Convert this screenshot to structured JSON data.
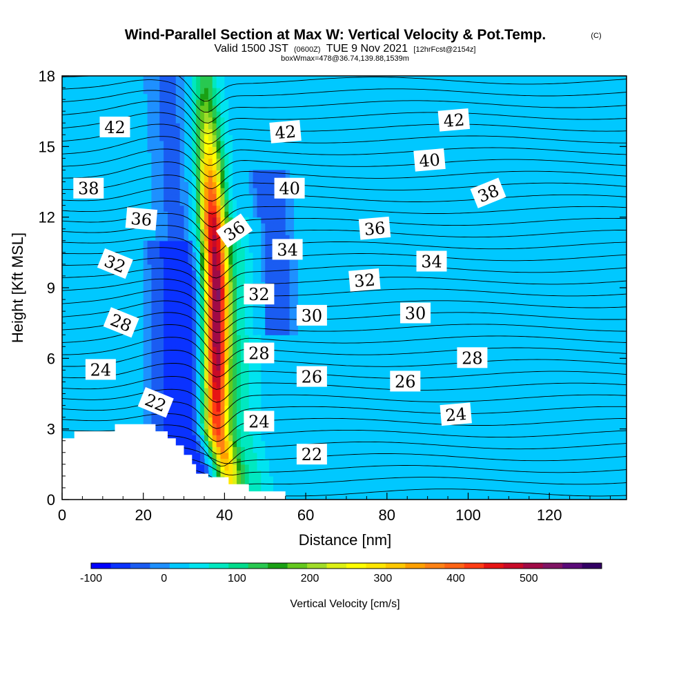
{
  "chart_data": {
    "type": "heatmap",
    "title": "Wind-Parallel Section at Max W: Vertical Velocity & Pot.Temp.",
    "title_mark": "(C)",
    "subtitle_valid": "Valid 1500 JST",
    "subtitle_utc": "(0600Z)",
    "subtitle_date": "TUE 9 Nov 2021",
    "subtitle_fcst": "[12hrFcst@2154z]",
    "subtitle_box": "boxWmax=478@36.74,139.88,1539m",
    "xlabel": "Distance [nm]",
    "ylabel": "Height [Kft MSL]",
    "xlim": [
      0,
      139
    ],
    "ylim": [
      0,
      18
    ],
    "x_ticks": [
      "0",
      "20",
      "40",
      "60",
      "80",
      "100",
      "120"
    ],
    "y_ticks": [
      "0",
      "3",
      "6",
      "9",
      "12",
      "15",
      "18"
    ],
    "colorbar": {
      "label": "Vertical Velocity [cm/s]",
      "min": -100,
      "max": 575,
      "step": 25,
      "tick_labels": [
        "-100",
        "0",
        "100",
        "200",
        "300",
        "400",
        "500"
      ],
      "colors": [
        "#0000ff",
        "#0a32ff",
        "#1a5cf2",
        "#1e90ff",
        "#00c8ff",
        "#00e4f0",
        "#00e8c0",
        "#00dc8c",
        "#28c850",
        "#1aa014",
        "#64c81e",
        "#a0dc28",
        "#dcf014",
        "#ffff00",
        "#ffe600",
        "#ffc800",
        "#ffa000",
        "#ff8214",
        "#ff6414",
        "#ff3c14",
        "#e61414",
        "#c80a28",
        "#a00a46",
        "#801464",
        "#5a0a78",
        "#320064"
      ]
    },
    "updraft_core": {
      "description": "narrow tilted updraft column",
      "peak_w_cm_s": 478,
      "profile": [
        {
          "height": 1.0,
          "distance": 41,
          "w": 250
        },
        {
          "height": 3.0,
          "distance": 38,
          "w": 380
        },
        {
          "height": 6.0,
          "distance": 38,
          "w": 460
        },
        {
          "height": 9.0,
          "distance": 38,
          "w": 478
        },
        {
          "height": 12.0,
          "distance": 37,
          "w": 420
        },
        {
          "height": 15.0,
          "distance": 36,
          "w": 250
        },
        {
          "height": 17.5,
          "distance": 35,
          "w": 120
        }
      ]
    },
    "isentrope_labels": [
      {
        "text": "42",
        "x": 13,
        "y": 15.8,
        "rot": 0
      },
      {
        "text": "38",
        "x": 6.5,
        "y": 13.2,
        "rot": 0
      },
      {
        "text": "36",
        "x": 19.5,
        "y": 11.9,
        "rot": 5
      },
      {
        "text": "32",
        "x": 13,
        "y": 10.0,
        "rot": 22
      },
      {
        "text": "28",
        "x": 14.5,
        "y": 7.5,
        "rot": 22
      },
      {
        "text": "24",
        "x": 9.5,
        "y": 5.5,
        "rot": 0
      },
      {
        "text": "22",
        "x": 23,
        "y": 4.1,
        "rot": 22
      },
      {
        "text": "36",
        "x": 42.5,
        "y": 11.4,
        "rot": -35
      },
      {
        "text": "32",
        "x": 48.5,
        "y": 8.7,
        "rot": 0
      },
      {
        "text": "28",
        "x": 48.5,
        "y": 6.2,
        "rot": 0
      },
      {
        "text": "24",
        "x": 48.5,
        "y": 3.3,
        "rot": 0
      },
      {
        "text": "42",
        "x": 55,
        "y": 15.6,
        "rot": -5
      },
      {
        "text": "40",
        "x": 56,
        "y": 13.2,
        "rot": 0
      },
      {
        "text": "34",
        "x": 55.5,
        "y": 10.6,
        "rot": 0
      },
      {
        "text": "30",
        "x": 61.5,
        "y": 7.8,
        "rot": 0
      },
      {
        "text": "26",
        "x": 61.5,
        "y": 5.2,
        "rot": 0
      },
      {
        "text": "22",
        "x": 61.5,
        "y": 1.9,
        "rot": 0
      },
      {
        "text": "42",
        "x": 96.5,
        "y": 16.1,
        "rot": -5
      },
      {
        "text": "40",
        "x": 90.5,
        "y": 14.4,
        "rot": -5
      },
      {
        "text": "38",
        "x": 105,
        "y": 13.0,
        "rot": -22
      },
      {
        "text": "36",
        "x": 77,
        "y": 11.5,
        "rot": -5
      },
      {
        "text": "34",
        "x": 91,
        "y": 10.1,
        "rot": 0
      },
      {
        "text": "32",
        "x": 74.5,
        "y": 9.3,
        "rot": -5
      },
      {
        "text": "30",
        "x": 87,
        "y": 7.9,
        "rot": 0
      },
      {
        "text": "28",
        "x": 101,
        "y": 6.0,
        "rot": 0
      },
      {
        "text": "26",
        "x": 84.5,
        "y": 5.0,
        "rot": 0
      },
      {
        "text": "24",
        "x": 97,
        "y": 3.6,
        "rot": -5
      }
    ],
    "terrain": [
      [
        0,
        2.6
      ],
      [
        3,
        2.6
      ],
      [
        3,
        2.9
      ],
      [
        13,
        2.9
      ],
      [
        13,
        3.2
      ],
      [
        23,
        3.2
      ],
      [
        23,
        2.9
      ],
      [
        26,
        2.9
      ],
      [
        26,
        2.6
      ],
      [
        28,
        2.6
      ],
      [
        28,
        2.3
      ],
      [
        30,
        2.3
      ],
      [
        30,
        1.9
      ],
      [
        32,
        1.9
      ],
      [
        32,
        1.5
      ],
      [
        33,
        1.5
      ],
      [
        33,
        1.1
      ],
      [
        36,
        1.1
      ],
      [
        36,
        0.95
      ],
      [
        41,
        0.95
      ],
      [
        41,
        0.65
      ],
      [
        46,
        0.65
      ],
      [
        46,
        0.35
      ],
      [
        55,
        0.35
      ],
      [
        55,
        0
      ]
    ],
    "legend": "none",
    "grid": false
  }
}
